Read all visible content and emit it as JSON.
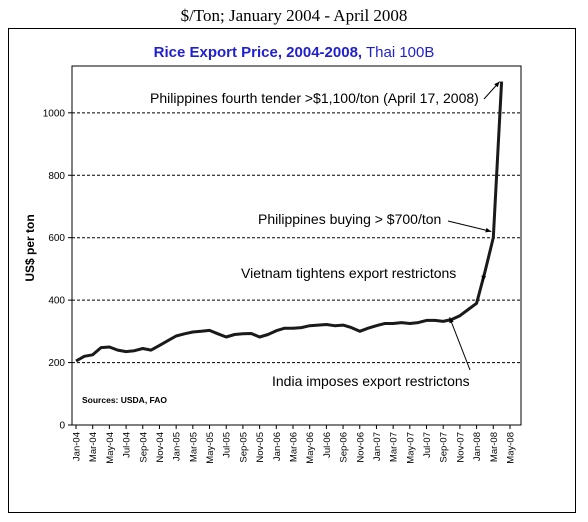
{
  "header": {
    "top_title": "$/Ton;  January 2004 - April 2008",
    "title_bold": "Rice Export Price, 2004-2008,",
    "title_regular": " Thai 100B"
  },
  "chart_data": {
    "type": "line",
    "title": "Rice Export Price, 2004-2008, Thai 100B",
    "ylabel": "US$ per ton",
    "xlabel": "",
    "ylim": [
      0,
      1150
    ],
    "yticks": [
      0,
      200,
      400,
      600,
      800,
      1000
    ],
    "grid": "dashed horizontal at 200, 400, 600, 800, 1000",
    "source": "Sources: USDA, FAO",
    "x_tick_labels": [
      "Jan-04",
      "Mar-04",
      "May-04",
      "Jul-04",
      "Sep-04",
      "Nov-04",
      "Jan-05",
      "Mar-05",
      "May-05",
      "Jul-05",
      "Sep-05",
      "Nov-05",
      "Jan-06",
      "Mar-06",
      "May-06",
      "Jul-06",
      "Sep-06",
      "Nov-06",
      "Jan-07",
      "Mar-07",
      "May-07",
      "Jul-07",
      "Sep-07",
      "Nov-07",
      "Jan-08",
      "Mar-08",
      "May-08"
    ],
    "x": [
      "Jan-04",
      "Feb-04",
      "Mar-04",
      "Apr-04",
      "May-04",
      "Jun-04",
      "Jul-04",
      "Aug-04",
      "Sep-04",
      "Oct-04",
      "Nov-04",
      "Dec-04",
      "Jan-05",
      "Feb-05",
      "Mar-05",
      "Apr-05",
      "May-05",
      "Jun-05",
      "Jul-05",
      "Aug-05",
      "Sep-05",
      "Oct-05",
      "Nov-05",
      "Dec-05",
      "Jan-06",
      "Feb-06",
      "Mar-06",
      "Apr-06",
      "May-06",
      "Jun-06",
      "Jul-06",
      "Aug-06",
      "Sep-06",
      "Oct-06",
      "Nov-06",
      "Dec-06",
      "Jan-07",
      "Feb-07",
      "Mar-07",
      "Apr-07",
      "May-07",
      "Jun-07",
      "Jul-07",
      "Aug-07",
      "Sep-07",
      "Oct-07",
      "Nov-07",
      "Dec-07",
      "Jan-08",
      "Feb-08",
      "Mar-08",
      "Apr-08"
    ],
    "series": [
      {
        "values": [
          205,
          220,
          225,
          248,
          250,
          240,
          235,
          238,
          245,
          240,
          255,
          270,
          285,
          292,
          298,
          300,
          303,
          292,
          282,
          290,
          292,
          293,
          282,
          290,
          302,
          310,
          310,
          312,
          318,
          320,
          322,
          318,
          320,
          312,
          300,
          310,
          318,
          325,
          325,
          328,
          325,
          328,
          335,
          335,
          332,
          338,
          350,
          370,
          390,
          490,
          600,
          1100
        ],
        "color": "#1a1a1a"
      }
    ],
    "annotations": [
      {
        "text": "Philippines fourth tender >$1,100/ton (April 17, 2008)",
        "target_x": "Apr-08",
        "target_y": 1100
      },
      {
        "text": "Philippines buying > $700/ton",
        "target_x": "Mar-08",
        "target_y": 620
      },
      {
        "text": "Vietnam tightens export restrictons",
        "target_x": "Feb-08",
        "target_y": 460
      },
      {
        "text": "India imposes export restrictons",
        "target_x": "Oct-07",
        "target_y": 345
      }
    ]
  }
}
